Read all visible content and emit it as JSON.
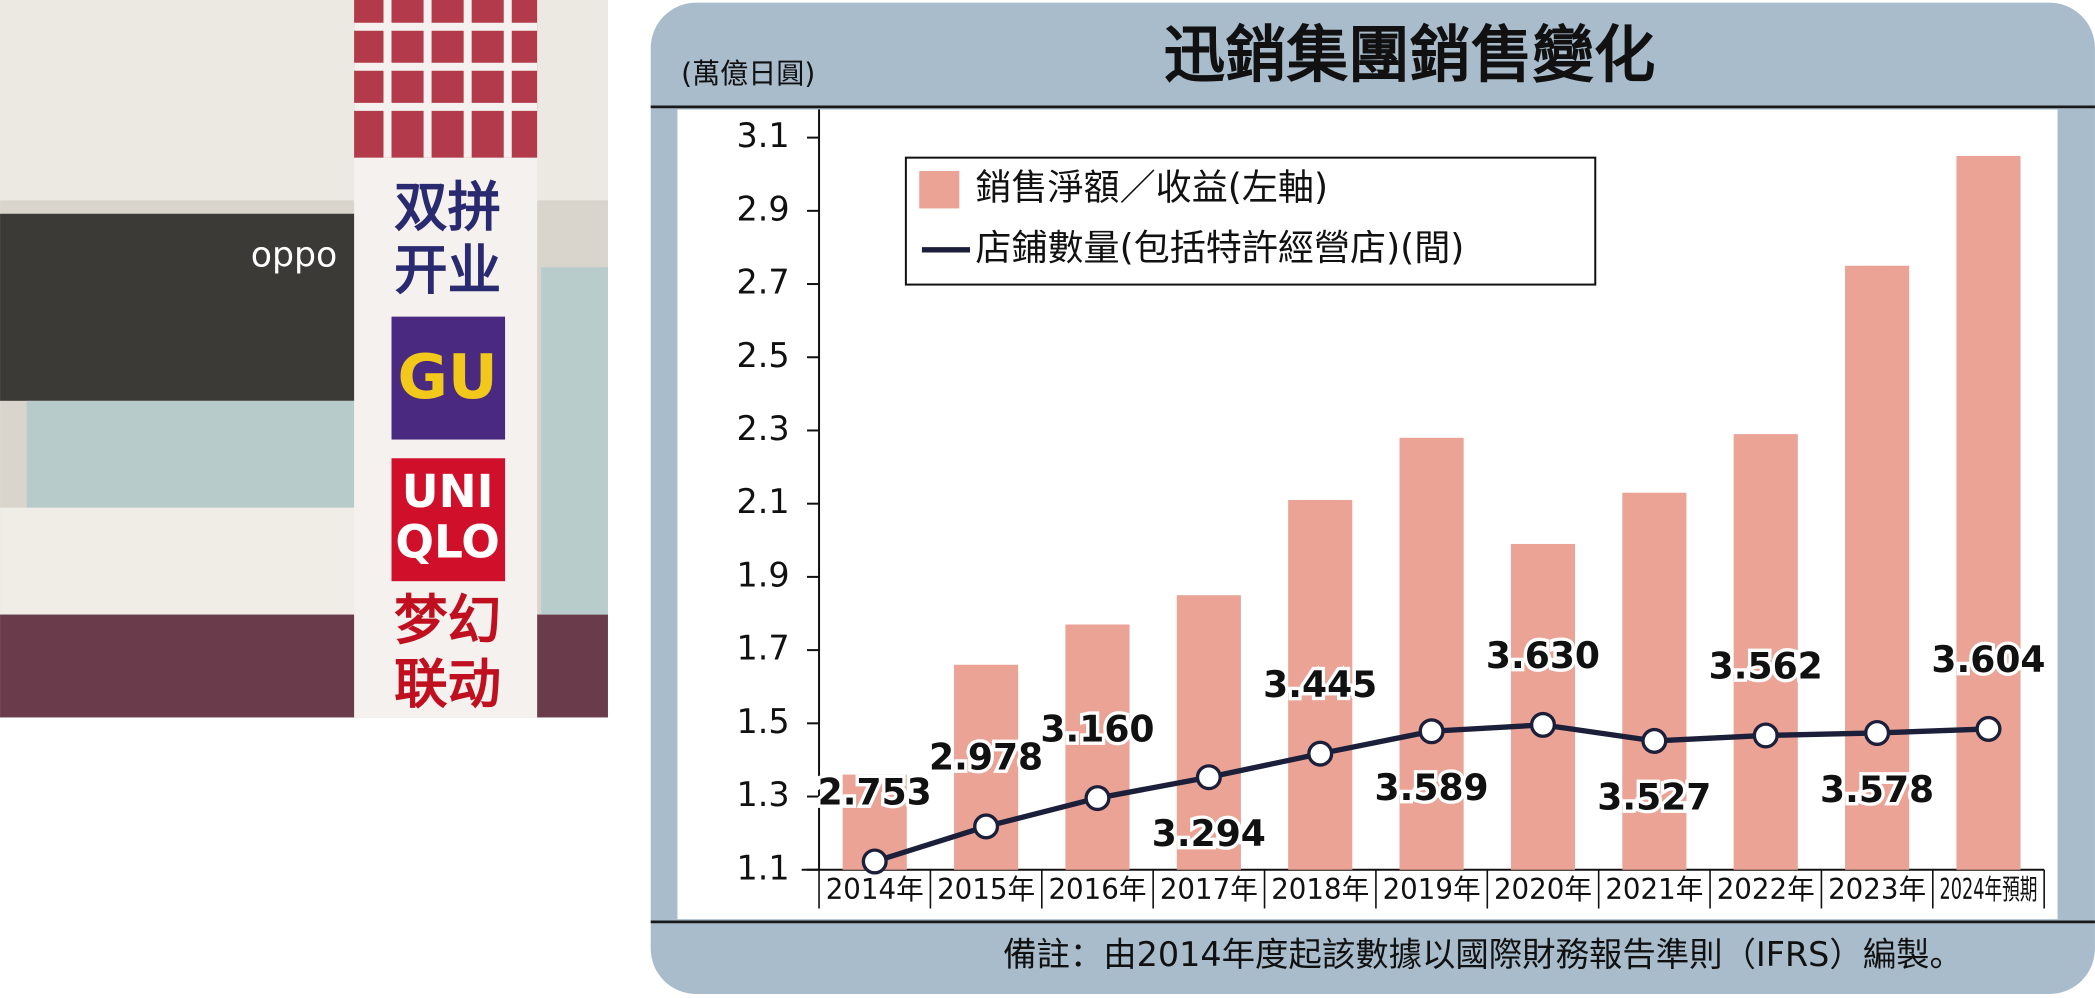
{
  "photo": {
    "banner": [
      "双拼",
      "开业",
      "GU",
      "UNI",
      "QLO",
      "梦幻",
      "联动"
    ],
    "sign": "oppo"
  },
  "chart_data": {
    "type": "bar",
    "title": "迅銷集團銷售變化",
    "y_label": "(萬億日圓)",
    "note": "備註：由2014年度起該數據以國際財務報告準則（IFRS）編製。",
    "categories": [
      "2014年",
      "2015年",
      "2016年",
      "2017年",
      "2018年",
      "2019年",
      "2020年",
      "2021年",
      "2022年",
      "2023年",
      "2024年預期"
    ],
    "series": [
      {
        "name": "銷售淨額／收益(左軸)",
        "type": "bar",
        "color": "#eaa394",
        "values": [
          1.36,
          1.66,
          1.77,
          1.85,
          2.11,
          2.28,
          1.99,
          2.13,
          2.29,
          2.75,
          3.05
        ]
      },
      {
        "name": "店鋪數量(包括特許經營店)(間)",
        "type": "line",
        "axis": "y2",
        "color": "#1c1f3a",
        "values": [
          2.753,
          2.978,
          3.16,
          3.294,
          3.445,
          3.589,
          3.63,
          3.527,
          3.562,
          3.578,
          3.604
        ],
        "value_labels": [
          "2.753",
          "2.978",
          "3.160",
          "3.294",
          "3.445",
          "3.589",
          "3.630",
          "3.527",
          "3.562",
          "3.578",
          "3.604"
        ]
      }
    ],
    "ylim": [
      1.1,
      3.1
    ],
    "yticks": [
      1.1,
      1.3,
      1.5,
      1.7,
      1.9,
      2.1,
      2.3,
      2.5,
      2.7,
      2.9,
      3.1
    ],
    "y2lim": [
      2.7,
      7.4
    ],
    "legend": "top-left"
  }
}
